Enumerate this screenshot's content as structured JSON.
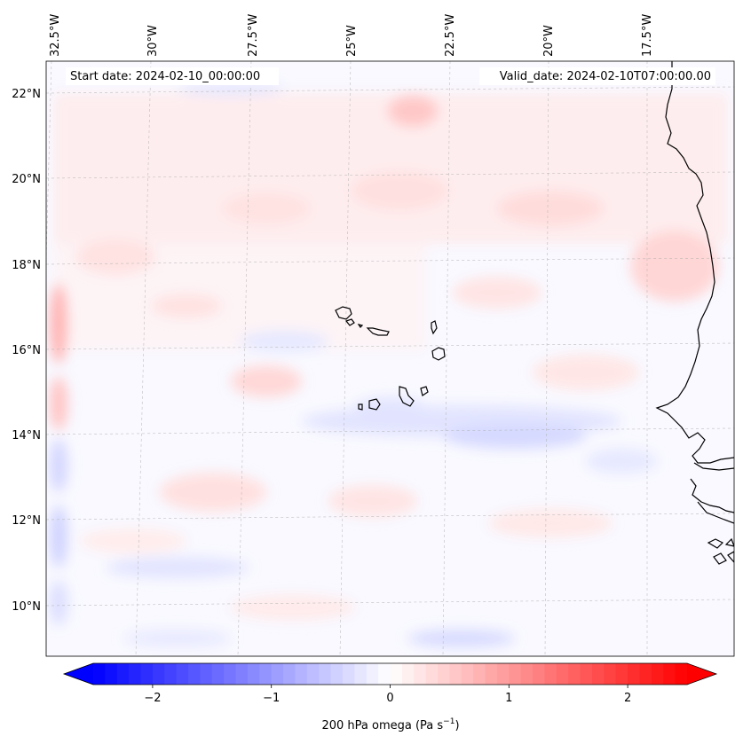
{
  "map": {
    "start_date_label": "Start date: 2024-02-10_00:00:00",
    "valid_date_label": "Valid_date: 2024-02-10T07:00:00.00",
    "longitude_labels": [
      "32.5°W",
      "30°W",
      "27.5°W",
      "25°W",
      "22.5°W",
      "20°W",
      "17.5°W"
    ],
    "latitude_labels": [
      "22°N",
      "20°N",
      "18°N",
      "16°N",
      "14°N",
      "12°N",
      "10°N"
    ],
    "field": "200 hPa omega",
    "coastline_color": "#000000",
    "gridline_color": "#b0b0b0"
  },
  "colorbar": {
    "label": "200 hPa omega (Pa s",
    "label_exponent": "−1",
    "label_suffix": ")",
    "ticks": [
      "−2",
      "−1",
      "0",
      "1",
      "2"
    ],
    "tick_values": [
      -2,
      -1,
      0,
      1,
      2
    ],
    "range": [
      -2.5,
      2.5
    ],
    "extend": "both",
    "cmap": "bwr",
    "min_color": "#0000ff",
    "mid_color": "#ffffff",
    "max_color": "#ff0000"
  }
}
